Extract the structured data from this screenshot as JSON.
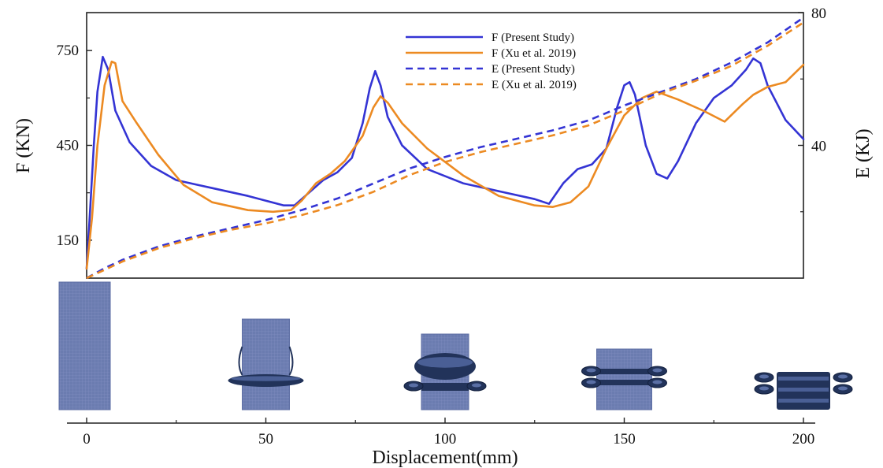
{
  "chart_data": {
    "type": "line",
    "xlabel": "Displacement(mm)",
    "ylabel_left": "F (KN)",
    "ylabel_right": "E (KJ)",
    "x_ticks": [
      "0",
      "50",
      "100",
      "150",
      "200"
    ],
    "y_left_ticks": [
      "150",
      "450",
      "750"
    ],
    "y_right_ticks": [
      "40",
      "80"
    ],
    "xlim": [
      0,
      200
    ],
    "ylim_left": [
      30,
      870
    ],
    "ylim_right": [
      0,
      80
    ],
    "legend_position": "top-center",
    "grid": false,
    "colors": {
      "blue": "#3434d4",
      "orange": "#ec8a22",
      "specimen": "#6b7cb0",
      "specimen_dark": "#22335a"
    },
    "series": [
      {
        "name": "F (Present Study)",
        "axis": "left",
        "style": "solid",
        "color": "#3434d4",
        "x": [
          0,
          1,
          2,
          3,
          4.5,
          6,
          8,
          12,
          18,
          25,
          35,
          45,
          50,
          55,
          58,
          62,
          66,
          70,
          74,
          77,
          79,
          80.5,
          82,
          84,
          88,
          95,
          105,
          115,
          125,
          129,
          133,
          137,
          141,
          145,
          148,
          150,
          151.5,
          153,
          156,
          159,
          162,
          165,
          170,
          175,
          180,
          184,
          186,
          188,
          190,
          195,
          200
        ],
        "y": [
          60,
          250,
          450,
          620,
          730,
          690,
          560,
          460,
          385,
          340,
          315,
          290,
          275,
          260,
          260,
          300,
          340,
          365,
          410,
          520,
          630,
          685,
          640,
          540,
          450,
          375,
          330,
          305,
          280,
          265,
          330,
          375,
          390,
          440,
          570,
          640,
          650,
          610,
          450,
          360,
          345,
          400,
          520,
          600,
          640,
          690,
          725,
          710,
          640,
          530,
          470
        ]
      },
      {
        "name": "F (Xu et al. 2019)",
        "axis": "left",
        "style": "solid",
        "color": "#ec8a22",
        "x": [
          0,
          1.5,
          3,
          5,
          7,
          8,
          10,
          14,
          20,
          27,
          35,
          45,
          52,
          57,
          60,
          64,
          68,
          72,
          77,
          80,
          82,
          84,
          88,
          95,
          105,
          115,
          125,
          130,
          135,
          140,
          145,
          150,
          155,
          159,
          165,
          172,
          178,
          183,
          186,
          190,
          195,
          200
        ],
        "y": [
          60,
          220,
          450,
          640,
          715,
          710,
          590,
          520,
          420,
          325,
          270,
          245,
          240,
          245,
          275,
          330,
          360,
          400,
          480,
          570,
          605,
          585,
          520,
          440,
          355,
          290,
          260,
          255,
          270,
          320,
          440,
          545,
          600,
          620,
          595,
          560,
          525,
          580,
          610,
          635,
          650,
          705
        ]
      },
      {
        "name": "E (Present Study)",
        "axis": "right",
        "style": "dashed",
        "color": "#3434d4",
        "x": [
          0,
          5,
          10,
          20,
          30,
          40,
          50,
          60,
          70,
          80,
          90,
          100,
          110,
          120,
          130,
          140,
          150,
          160,
          170,
          180,
          190,
          200
        ],
        "y": [
          0,
          3,
          5.5,
          9.5,
          12.5,
          15,
          17.5,
          20.5,
          24,
          28.5,
          33,
          36.5,
          39.5,
          42,
          44.5,
          47.5,
          52,
          56,
          60,
          65,
          71,
          78.5
        ]
      },
      {
        "name": "E (Xu et al. 2019)",
        "axis": "right",
        "style": "dashed",
        "color": "#ec8a22",
        "x": [
          0,
          5,
          10,
          20,
          30,
          40,
          50,
          60,
          70,
          80,
          90,
          100,
          110,
          120,
          130,
          140,
          150,
          160,
          170,
          180,
          190,
          200
        ],
        "y": [
          0,
          2.5,
          5,
          9,
          12,
          14.5,
          16.5,
          19,
          22,
          26,
          31,
          35,
          38,
          40.5,
          43,
          46,
          50.5,
          55.5,
          59.5,
          64,
          70,
          77
        ]
      }
    ],
    "specimens": [
      {
        "x": 0,
        "stage": "undeformed"
      },
      {
        "x": 50,
        "stage": "single-fold"
      },
      {
        "x": 100,
        "stage": "bulge-fold"
      },
      {
        "x": 150,
        "stage": "double-fold"
      },
      {
        "x": 200,
        "stage": "multi-fold"
      }
    ]
  }
}
